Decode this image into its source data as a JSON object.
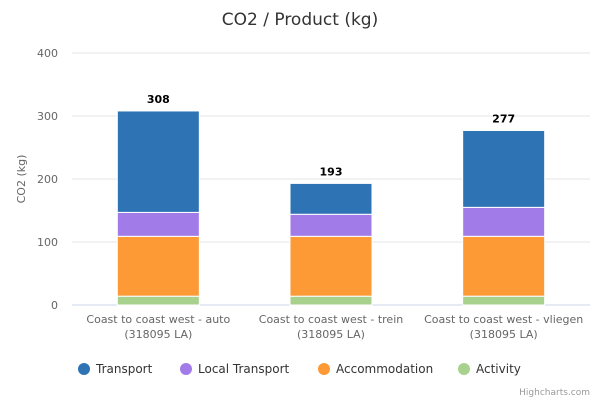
{
  "chart_data": {
    "type": "bar",
    "stacked": true,
    "title": "CO2 / Product (kg)",
    "xlabel": "",
    "ylabel": "CO2 (kg)",
    "ylim": [
      0,
      400
    ],
    "yticks": [
      0,
      100,
      200,
      300,
      400
    ],
    "grid": true,
    "legend_position": "bottom",
    "categories": [
      [
        "Coast to coast west - auto",
        "(318095 LA)"
      ],
      [
        "Coast to coast west - trein",
        "(318095 LA)"
      ],
      [
        "Coast to coast west - vliegen",
        "(318095 LA)"
      ]
    ],
    "series": [
      {
        "name": "Transport",
        "color": "#2e74b5",
        "values": [
          161,
          49,
          122
        ]
      },
      {
        "name": "Local Transport",
        "color": "#a17be8",
        "values": [
          38,
          35,
          46
        ]
      },
      {
        "name": "Accommodation",
        "color": "#fd9a35",
        "values": [
          95,
          95,
          95
        ]
      },
      {
        "name": "Activity",
        "color": "#a8d18d",
        "values": [
          14,
          14,
          14
        ]
      }
    ],
    "totals": [
      308,
      193,
      277
    ],
    "credit": "Highcharts.com"
  }
}
